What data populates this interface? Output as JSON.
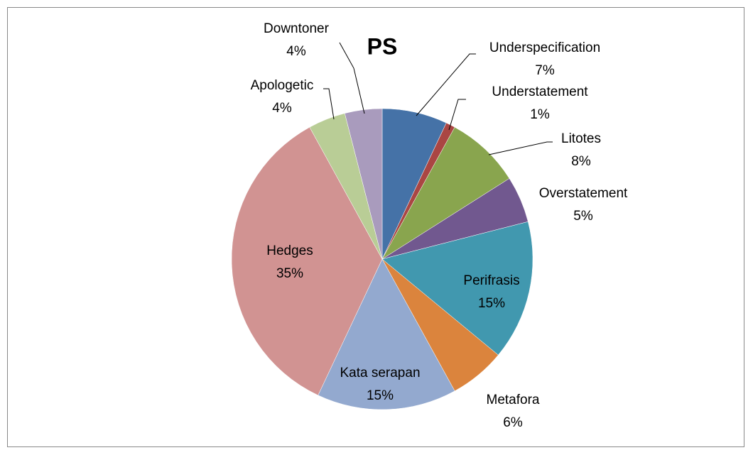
{
  "chart_data": {
    "type": "pie",
    "title": "PS",
    "categories": [
      "Underspecification",
      "Understatement",
      "Litotes",
      "Overstatement",
      "Perifrasis",
      "Metafora",
      "Kata serapan",
      "Hedges",
      "Apologetic",
      "Downtoner"
    ],
    "values": [
      7,
      1,
      8,
      5,
      15,
      6,
      15,
      35,
      4,
      4
    ],
    "value_labels": [
      "7%",
      "1%",
      "8%",
      "5%",
      "15%",
      "6%",
      "15%",
      "35%",
      "4%",
      "4%"
    ],
    "colors": [
      "#4572a7",
      "#aa4643",
      "#89a54e",
      "#71588f",
      "#4198af",
      "#db843d",
      "#93a9cf",
      "#d19392",
      "#b9cd96",
      "#a99bbd"
    ]
  }
}
